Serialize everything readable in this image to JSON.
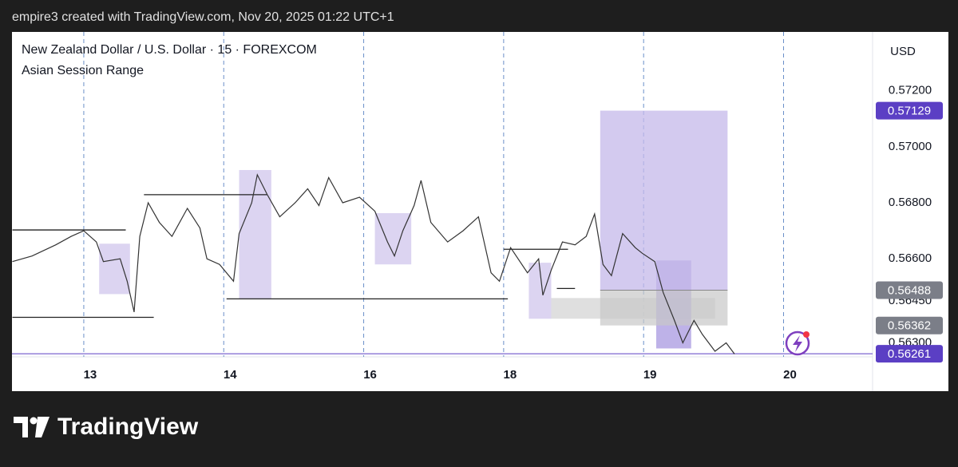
{
  "header": "empire3 created with TradingView.com, Nov 20, 2025 01:22 UTC+1",
  "footer": "TradingView",
  "chart_data": {
    "type": "line",
    "title": "New Zealand Dollar / U.S. Dollar · 15 · FOREXCOM",
    "subtitle": "Asian Session Range",
    "y_axis_label": "USD",
    "color": "#333333",
    "x": [
      -0.51,
      -0.37,
      -0.2,
      -0.09,
      0,
      0.09,
      0.14,
      0.26,
      0.31,
      0.36,
      0.4,
      0.46,
      0.54,
      0.63,
      0.74,
      0.83,
      0.88,
      0.97,
      1.07,
      1.11,
      1.2,
      1.24,
      1.31,
      1.4,
      1.51,
      1.6,
      1.68,
      1.75,
      1.85,
      1.97,
      2.08,
      2.17,
      2.22,
      2.28,
      2.36,
      2.41,
      2.48,
      2.6,
      2.71,
      2.82,
      2.91,
      2.97,
      3.05,
      3.17,
      3.25,
      3.28,
      3.34,
      3.42,
      3.51,
      3.59,
      3.65,
      3.71,
      3.77,
      3.85,
      3.94,
      3.99,
      4.08,
      4.14,
      4.22,
      4.28,
      4.36,
      4.42,
      4.51,
      4.59,
      4.65
    ],
    "values": [
      0.5659,
      0.5661,
      0.5665,
      0.5668,
      0.567,
      0.5666,
      0.5659,
      0.566,
      0.5652,
      0.5641,
      0.5668,
      0.568,
      0.5673,
      0.5668,
      0.5678,
      0.5671,
      0.566,
      0.5658,
      0.5652,
      0.5669,
      0.568,
      0.569,
      0.5683,
      0.5675,
      0.568,
      0.5685,
      0.5679,
      0.5689,
      0.568,
      0.5682,
      0.5677,
      0.5666,
      0.5661,
      0.567,
      0.5679,
      0.5688,
      0.5673,
      0.5666,
      0.567,
      0.5675,
      0.5655,
      0.5652,
      0.5664,
      0.5655,
      0.566,
      0.5647,
      0.5656,
      0.5666,
      0.5665,
      0.5668,
      0.5676,
      0.5658,
      0.5654,
      0.5669,
      0.5664,
      0.5662,
      0.5659,
      0.5648,
      0.5638,
      0.563,
      0.5638,
      0.5633,
      0.5627,
      0.563,
      0.5626
    ],
    "xlim": [
      -0.513,
      5.636
    ],
    "xticks": [
      {
        "value": 0,
        "label": "13"
      },
      {
        "value": 1,
        "label": "14"
      },
      {
        "value": 2,
        "label": "16"
      },
      {
        "value": 3,
        "label": "18"
      },
      {
        "value": 4,
        "label": "19"
      },
      {
        "value": 5,
        "label": "20"
      }
    ],
    "ylim": [
      0.5625,
      0.5741
    ],
    "yticks": [
      {
        "value": 0.572,
        "label": "0.57200"
      },
      {
        "value": 0.57,
        "label": "0.57000"
      },
      {
        "value": 0.568,
        "label": "0.56800"
      },
      {
        "value": 0.566,
        "label": "0.56600"
      },
      {
        "value": 0.5645,
        "label": "0.56450"
      },
      {
        "value": 0.563,
        "label": "0.56300"
      }
    ],
    "ranges": [
      {
        "x": [
          0.11,
          0.33
        ],
        "y": [
          0.56474,
          0.56654
        ],
        "color": "#d6cdef"
      },
      {
        "x": [
          1.11,
          1.34
        ],
        "y": [
          0.56457,
          0.56917
        ],
        "color": "#d6cdef"
      },
      {
        "x": [
          2.08,
          2.34
        ],
        "y": [
          0.5658,
          0.56763
        ],
        "color": "#d6cdef"
      },
      {
        "x": [
          3.18,
          3.34
        ],
        "y": [
          0.56386,
          0.56586
        ],
        "color": "#d6cdef"
      },
      {
        "x": [
          3.34,
          4.51
        ],
        "y": [
          0.56386,
          0.5646
        ],
        "color": "#d9d9d9"
      },
      {
        "x": [
          4.09,
          4.34
        ],
        "y": [
          0.5628,
          0.56594
        ],
        "color": "#b3a4e4"
      }
    ],
    "levels": [
      {
        "x": [
          -0.51,
          0.3
        ],
        "value": 0.56703
      },
      {
        "x": [
          -0.51,
          0.5
        ],
        "value": 0.56391
      },
      {
        "x": [
          0.43,
          1.31
        ],
        "value": 0.56829
      },
      {
        "x": [
          1.02,
          3.03
        ],
        "value": 0.56457
      },
      {
        "x": [
          3.0,
          3.46
        ],
        "value": 0.56634
      },
      {
        "x": [
          3.38,
          3.51
        ],
        "value": 0.56494
      }
    ],
    "position": {
      "x": [
        3.69,
        4.6
      ],
      "target": 0.57129,
      "entry": 0.56488,
      "stop": 0.56362,
      "target_color": "#c4b8ea",
      "stop_color": "#c8c8c8"
    },
    "last_price": 0.56261,
    "accent_color": "#5b3fc4",
    "neutral_color": "#7b7e88"
  }
}
